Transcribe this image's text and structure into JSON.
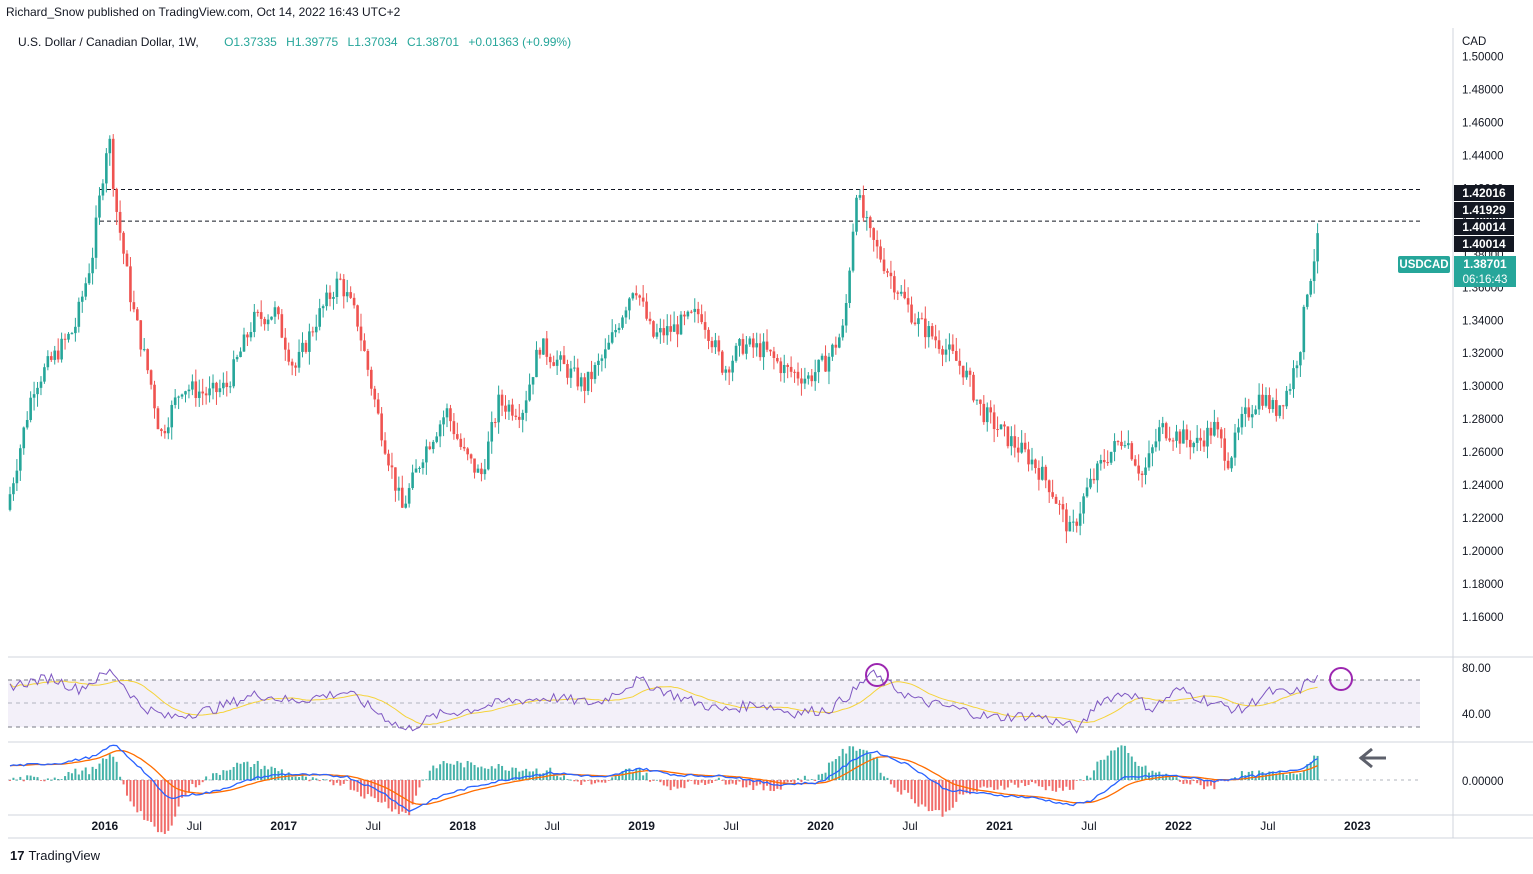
{
  "header": {
    "publisher": "Richard_Snow published on TradingView.com, Oct 14, 2022 16:43 UTC+2",
    "symbol": "U.S. Dollar / Canadian Dollar, 1W,",
    "open": "O1.37335",
    "high": "H1.39775",
    "low": "L1.37034",
    "close": "C1.38701",
    "change": "+0.01363 (+0.99%)"
  },
  "footer": {
    "brand": "TradingView"
  },
  "colors": {
    "up": "#26a69a",
    "down": "#ef5350",
    "rsi": "#7e57c2",
    "rsi_ma": "#f5d33a",
    "macd": "#2962ff",
    "signal": "#ff6d00",
    "circle": "#9c27b0"
  },
  "price_axis": {
    "currency": "CAD",
    "ticks": [
      "1.50000",
      "1.48000",
      "1.46000",
      "1.44000",
      "1.42000",
      "1.40000",
      "1.38000",
      "1.36000",
      "1.34000",
      "1.32000",
      "1.30000",
      "1.28000",
      "1.26000",
      "1.24000",
      "1.22000",
      "1.20000",
      "1.18000",
      "1.16000"
    ],
    "tags": [
      {
        "text": "1.42016",
        "value": 1.42016,
        "style": "black"
      },
      {
        "text": "1.41929",
        "value": 1.41929,
        "style": "black"
      },
      {
        "text": "1.40014",
        "value": 1.40014,
        "style": "black"
      },
      {
        "text": "1.40014",
        "value": 1.40014,
        "style": "black"
      }
    ],
    "last": {
      "label": "USDCAD",
      "price": "1.38701",
      "countdown": "06:16:43",
      "value": 1.38701
    }
  },
  "time_axis": {
    "labels": [
      {
        "text": "2016",
        "year": true,
        "t": 2016.0
      },
      {
        "text": "Jul",
        "year": false,
        "t": 2016.5
      },
      {
        "text": "2017",
        "year": true,
        "t": 2017.0
      },
      {
        "text": "Jul",
        "year": false,
        "t": 2017.5
      },
      {
        "text": "2018",
        "year": true,
        "t": 2018.0
      },
      {
        "text": "Jul",
        "year": false,
        "t": 2018.5
      },
      {
        "text": "2019",
        "year": true,
        "t": 2019.0
      },
      {
        "text": "Jul",
        "year": false,
        "t": 2019.5
      },
      {
        "text": "2020",
        "year": true,
        "t": 2020.0
      },
      {
        "text": "Jul",
        "year": false,
        "t": 2020.5
      },
      {
        "text": "2021",
        "year": true,
        "t": 2021.0
      },
      {
        "text": "Jul",
        "year": false,
        "t": 2021.5
      },
      {
        "text": "2022",
        "year": true,
        "t": 2022.0
      },
      {
        "text": "Jul",
        "year": false,
        "t": 2022.5
      },
      {
        "text": "2023",
        "year": true,
        "t": 2023.0
      }
    ]
  },
  "rsi_axis": {
    "ticks": [
      "80.00",
      "40.00"
    ]
  },
  "macd_axis": {
    "ticks": [
      "0.00000"
    ]
  },
  "chart_data": {
    "type": "candlestick",
    "symbol": "USDCAD",
    "interval": "1W",
    "y_range": [
      1.14,
      1.51
    ],
    "x_range": [
      2015.47,
      2023.35
    ],
    "resistance_levels": [
      1.41929,
      1.40014
    ],
    "price_path": [
      [
        2015.47,
        1.225
      ],
      [
        2015.62,
        1.3
      ],
      [
        2015.75,
        1.32
      ],
      [
        2015.85,
        1.335
      ],
      [
        2015.95,
        1.38
      ],
      [
        2016.04,
        1.455
      ],
      [
        2016.08,
        1.41
      ],
      [
        2016.17,
        1.35
      ],
      [
        2016.28,
        1.3
      ],
      [
        2016.33,
        1.27
      ],
      [
        2016.45,
        1.3
      ],
      [
        2016.6,
        1.295
      ],
      [
        2016.7,
        1.3
      ],
      [
        2016.85,
        1.34
      ],
      [
        2016.97,
        1.345
      ],
      [
        2017.08,
        1.31
      ],
      [
        2017.2,
        1.34
      ],
      [
        2017.33,
        1.365
      ],
      [
        2017.43,
        1.34
      ],
      [
        2017.55,
        1.28
      ],
      [
        2017.68,
        1.225
      ],
      [
        2017.8,
        1.26
      ],
      [
        2017.93,
        1.285
      ],
      [
        2018.02,
        1.26
      ],
      [
        2018.12,
        1.245
      ],
      [
        2018.22,
        1.29
      ],
      [
        2018.35,
        1.285
      ],
      [
        2018.45,
        1.325
      ],
      [
        2018.6,
        1.31
      ],
      [
        2018.7,
        1.3
      ],
      [
        2018.82,
        1.32
      ],
      [
        2018.98,
        1.363
      ],
      [
        2019.08,
        1.33
      ],
      [
        2019.2,
        1.335
      ],
      [
        2019.35,
        1.345
      ],
      [
        2019.48,
        1.31
      ],
      [
        2019.58,
        1.325
      ],
      [
        2019.7,
        1.322
      ],
      [
        2019.82,
        1.31
      ],
      [
        2019.95,
        1.305
      ],
      [
        2020.05,
        1.315
      ],
      [
        2020.15,
        1.335
      ],
      [
        2020.22,
        1.42
      ],
      [
        2020.25,
        1.405
      ],
      [
        2020.3,
        1.39
      ],
      [
        2020.42,
        1.365
      ],
      [
        2020.55,
        1.34
      ],
      [
        2020.7,
        1.325
      ],
      [
        2020.82,
        1.31
      ],
      [
        2020.92,
        1.285
      ],
      [
        2021.05,
        1.27
      ],
      [
        2021.2,
        1.255
      ],
      [
        2021.3,
        1.24
      ],
      [
        2021.42,
        1.21
      ],
      [
        2021.5,
        1.235
      ],
      [
        2021.6,
        1.255
      ],
      [
        2021.72,
        1.27
      ],
      [
        2021.82,
        1.245
      ],
      [
        2021.92,
        1.275
      ],
      [
        2022.02,
        1.27
      ],
      [
        2022.12,
        1.265
      ],
      [
        2022.22,
        1.275
      ],
      [
        2022.3,
        1.255
      ],
      [
        2022.38,
        1.28
      ],
      [
        2022.48,
        1.295
      ],
      [
        2022.56,
        1.285
      ],
      [
        2022.64,
        1.3
      ],
      [
        2022.7,
        1.325
      ],
      [
        2022.74,
        1.36
      ],
      [
        2022.77,
        1.373
      ],
      [
        2022.79,
        1.387
      ]
    ],
    "rsi_path": [
      [
        2015.47,
        65
      ],
      [
        2015.7,
        72
      ],
      [
        2015.85,
        62
      ],
      [
        2016.04,
        78
      ],
      [
        2016.2,
        48
      ],
      [
        2016.35,
        38
      ],
      [
        2016.6,
        45
      ],
      [
        2016.85,
        58
      ],
      [
        2017.05,
        52
      ],
      [
        2017.35,
        60
      ],
      [
        2017.55,
        40
      ],
      [
        2017.68,
        27
      ],
      [
        2017.85,
        40
      ],
      [
        2018.05,
        45
      ],
      [
        2018.25,
        52
      ],
      [
        2018.5,
        55
      ],
      [
        2018.75,
        50
      ],
      [
        2018.98,
        70
      ],
      [
        2019.2,
        56
      ],
      [
        2019.45,
        44
      ],
      [
        2019.65,
        50
      ],
      [
        2019.85,
        42
      ],
      [
        2020.05,
        45
      ],
      [
        2020.2,
        62
      ],
      [
        2020.28,
        76
      ],
      [
        2020.38,
        66
      ],
      [
        2020.55,
        52
      ],
      [
        2020.75,
        46
      ],
      [
        2020.95,
        38
      ],
      [
        2021.2,
        40
      ],
      [
        2021.35,
        33
      ],
      [
        2021.45,
        28
      ],
      [
        2021.55,
        52
      ],
      [
        2021.72,
        60
      ],
      [
        2021.85,
        45
      ],
      [
        2022.0,
        62
      ],
      [
        2022.2,
        50
      ],
      [
        2022.35,
        44
      ],
      [
        2022.5,
        60
      ],
      [
        2022.65,
        58
      ],
      [
        2022.75,
        72
      ],
      [
        2022.79,
        70
      ]
    ],
    "macd_path": [
      [
        2015.47,
        0.012
      ],
      [
        2015.75,
        0.014
      ],
      [
        2015.95,
        0.02
      ],
      [
        2016.05,
        0.03
      ],
      [
        2016.2,
        0.01
      ],
      [
        2016.35,
        -0.015
      ],
      [
        2016.6,
        -0.01
      ],
      [
        2016.85,
        0.002
      ],
      [
        2017.0,
        0.005
      ],
      [
        2017.35,
        0.003
      ],
      [
        2017.55,
        -0.01
      ],
      [
        2017.7,
        -0.026
      ],
      [
        2017.9,
        -0.012
      ],
      [
        2018.1,
        -0.004
      ],
      [
        2018.3,
        0.002
      ],
      [
        2018.5,
        0.006
      ],
      [
        2018.8,
        0.002
      ],
      [
        2018.98,
        0.01
      ],
      [
        2019.2,
        0.004
      ],
      [
        2019.5,
        0.003
      ],
      [
        2019.75,
        -0.004
      ],
      [
        2020.0,
        -0.002
      ],
      [
        2020.22,
        0.02
      ],
      [
        2020.3,
        0.024
      ],
      [
        2020.5,
        0.012
      ],
      [
        2020.7,
        -0.008
      ],
      [
        2020.95,
        -0.012
      ],
      [
        2021.2,
        -0.015
      ],
      [
        2021.4,
        -0.021
      ],
      [
        2021.5,
        -0.018
      ],
      [
        2021.7,
        0.002
      ],
      [
        2021.95,
        0.004
      ],
      [
        2022.2,
        -0.001
      ],
      [
        2022.5,
        0.005
      ],
      [
        2022.7,
        0.01
      ],
      [
        2022.79,
        0.02
      ]
    ],
    "annotations": [
      "circle RSI at 2020 peak",
      "circle RSI at Oct 2022",
      "arrow pointing to MACD rise"
    ]
  }
}
